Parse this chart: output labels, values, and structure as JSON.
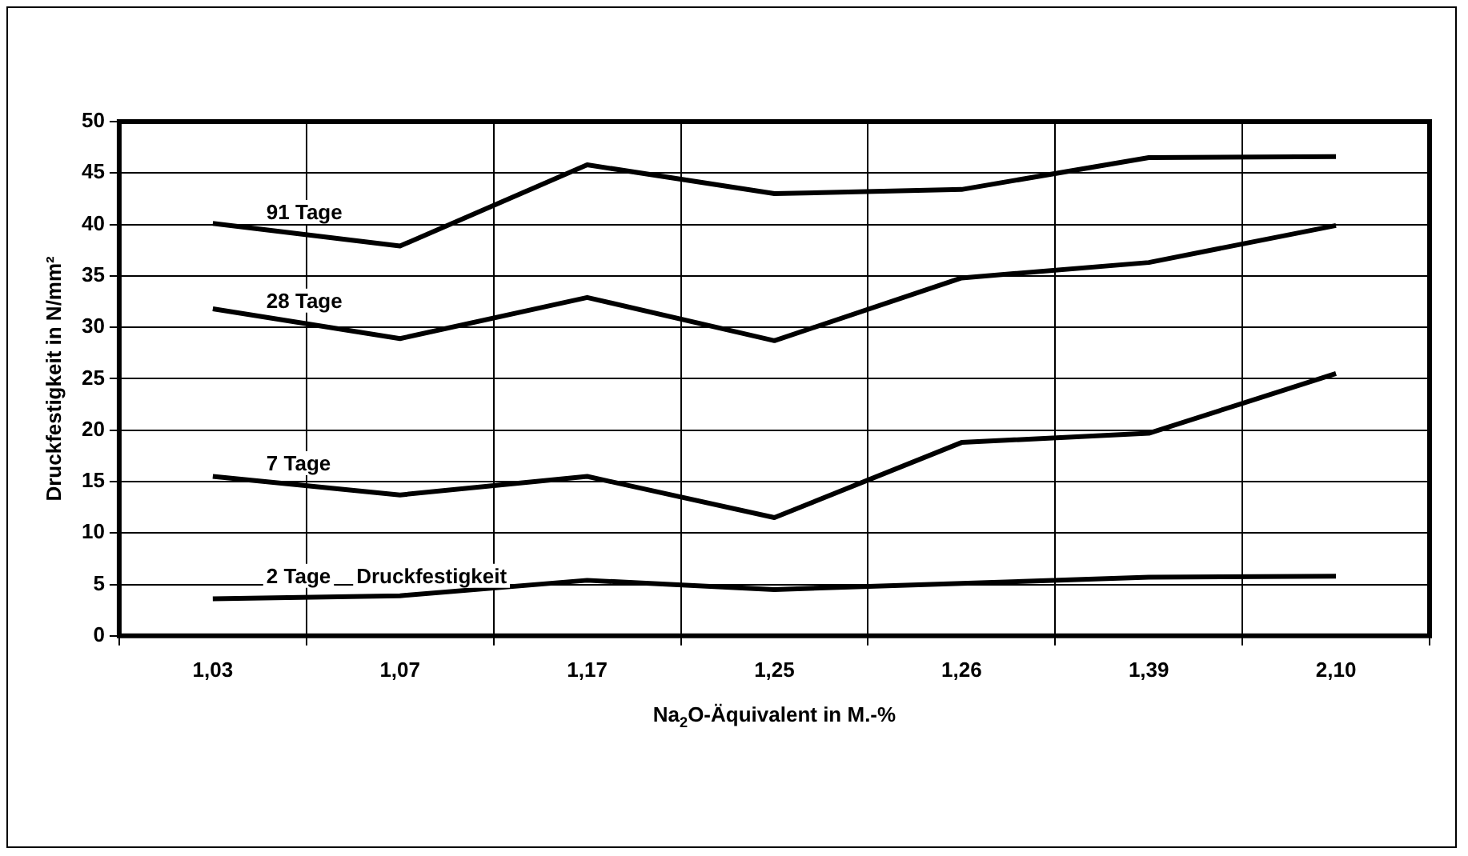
{
  "chart_data": {
    "type": "line",
    "xlabel": "Na$_{2}$O-Äquivalent in M.-%",
    "ylabel": "Druckfestigkeit in N/mm²",
    "categories": [
      "1,03",
      "1,07",
      "1,17",
      "1,25",
      "1,26",
      "1,39",
      "2,10"
    ],
    "series": [
      {
        "name": "91 Tage",
        "color": "#000000",
        "values": [
          40.1,
          37.9,
          45.8,
          43.0,
          43.4,
          46.5,
          46.6
        ]
      },
      {
        "name": "28 Tage",
        "color": "#000000",
        "values": [
          31.8,
          28.9,
          32.9,
          28.7,
          34.8,
          36.3,
          39.9
        ]
      },
      {
        "name": "7 Tage",
        "color": "#000000",
        "values": [
          15.5,
          13.7,
          15.5,
          11.5,
          18.8,
          19.7,
          25.5
        ]
      },
      {
        "name": "2 Tage",
        "color": "#000000",
        "values": [
          3.6,
          3.9,
          5.4,
          4.5,
          5.1,
          5.7,
          5.8
        ]
      }
    ],
    "annotations": [
      "Druckfestigkeit"
    ],
    "ylim": [
      0,
      50
    ],
    "yticks": [
      0,
      5,
      10,
      15,
      20,
      25,
      30,
      35,
      40,
      45,
      50
    ],
    "grid": true,
    "legend": false,
    "marker": "none",
    "line_style": "solid"
  }
}
